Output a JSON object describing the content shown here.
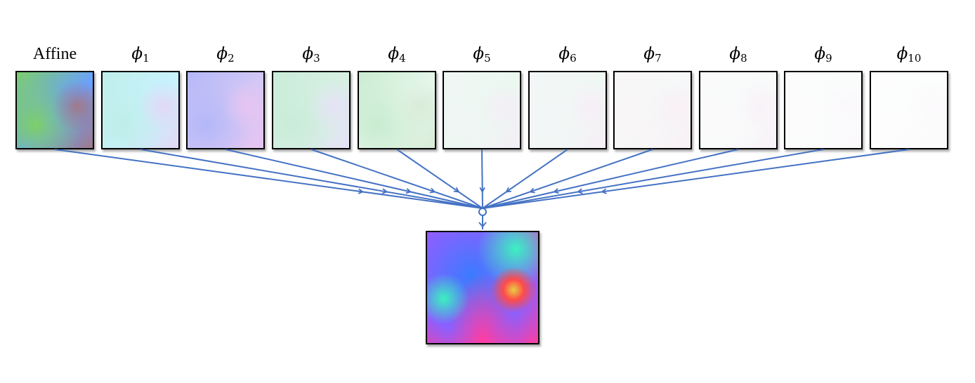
{
  "labels": {
    "affine": "Affine",
    "phi_symbol": "ϕ",
    "phi_indices": [
      "1",
      "2",
      "3",
      "4",
      "5",
      "6",
      "7",
      "8",
      "9",
      "10"
    ]
  },
  "tiles": [
    {
      "name": "affine",
      "colors": [
        "#7dcf6a",
        "#6aa0ff",
        "#a07a8a"
      ]
    },
    {
      "name": "phi-1",
      "colors": [
        "#bfeee8",
        "#c8f2ff",
        "#e2d8f6"
      ]
    },
    {
      "name": "phi-2",
      "colors": [
        "#b4b8f8",
        "#d4c8f6",
        "#e6c4f0"
      ]
    },
    {
      "name": "phi-3",
      "colors": [
        "#c9ecd8",
        "#d8f0e4",
        "#e4e2f6"
      ]
    },
    {
      "name": "phi-4",
      "colors": [
        "#c8ecd0",
        "#e6f6ea",
        "#d8ecd8"
      ]
    },
    {
      "name": "phi-5",
      "colors": [
        "#f0f6f4",
        "#eaf8f0",
        "#f4eef6"
      ]
    },
    {
      "name": "phi-6",
      "colors": [
        "#f3f6f6",
        "#f0f8f4",
        "#f6eef6"
      ]
    },
    {
      "name": "phi-7",
      "colors": [
        "#f8f6f6",
        "#f6f8f8",
        "#f8f0f6"
      ]
    },
    {
      "name": "phi-8",
      "colors": [
        "#fafafa",
        "#f8fafa",
        "#f8f2f8"
      ]
    },
    {
      "name": "phi-9",
      "colors": [
        "#fcfcfc",
        "#fafcfc",
        "#fbf8fb"
      ]
    },
    {
      "name": "phi-10",
      "colors": [
        "#fdfdfd",
        "#fcfdfd",
        "#fcfafc"
      ]
    }
  ],
  "result": {
    "colors": [
      "#3a7bff",
      "#3cf0c0",
      "#ff3da0",
      "#e6d040",
      "#8a60ff"
    ]
  },
  "edge_color": "#4472c4"
}
